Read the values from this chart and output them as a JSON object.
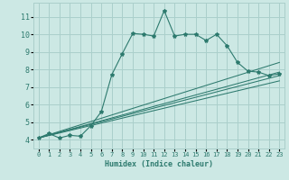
{
  "title": "",
  "xlabel": "Humidex (Indice chaleur)",
  "bg_color": "#cce8e4",
  "grid_color": "#aacfcb",
  "line_color": "#2d7a6e",
  "xlim": [
    -0.5,
    23.5
  ],
  "ylim": [
    3.5,
    11.8
  ],
  "xticks": [
    0,
    1,
    2,
    3,
    4,
    5,
    6,
    7,
    8,
    9,
    10,
    11,
    12,
    13,
    14,
    15,
    16,
    17,
    18,
    19,
    20,
    21,
    22,
    23
  ],
  "yticks": [
    4,
    5,
    6,
    7,
    8,
    9,
    10,
    11
  ],
  "main_x": [
    0,
    1,
    2,
    3,
    4,
    5,
    6,
    7,
    8,
    9,
    10,
    11,
    12,
    13,
    14,
    15,
    16,
    17,
    18,
    19,
    20,
    21,
    22,
    23
  ],
  "main_y": [
    4.1,
    4.35,
    4.1,
    4.25,
    4.2,
    4.8,
    5.6,
    7.7,
    8.9,
    10.05,
    10.0,
    9.9,
    11.35,
    9.9,
    10.0,
    10.0,
    9.65,
    10.0,
    9.35,
    8.4,
    7.9,
    7.85,
    7.65,
    7.75
  ],
  "lines": [
    {
      "x0": 0,
      "y0": 4.1,
      "x1": 23,
      "y1": 8.4
    },
    {
      "x0": 0,
      "y0": 4.1,
      "x1": 23,
      "y1": 7.85
    },
    {
      "x0": 0,
      "y0": 4.1,
      "x1": 23,
      "y1": 7.65
    },
    {
      "x0": 0,
      "y0": 4.1,
      "x1": 23,
      "y1": 7.35
    }
  ]
}
